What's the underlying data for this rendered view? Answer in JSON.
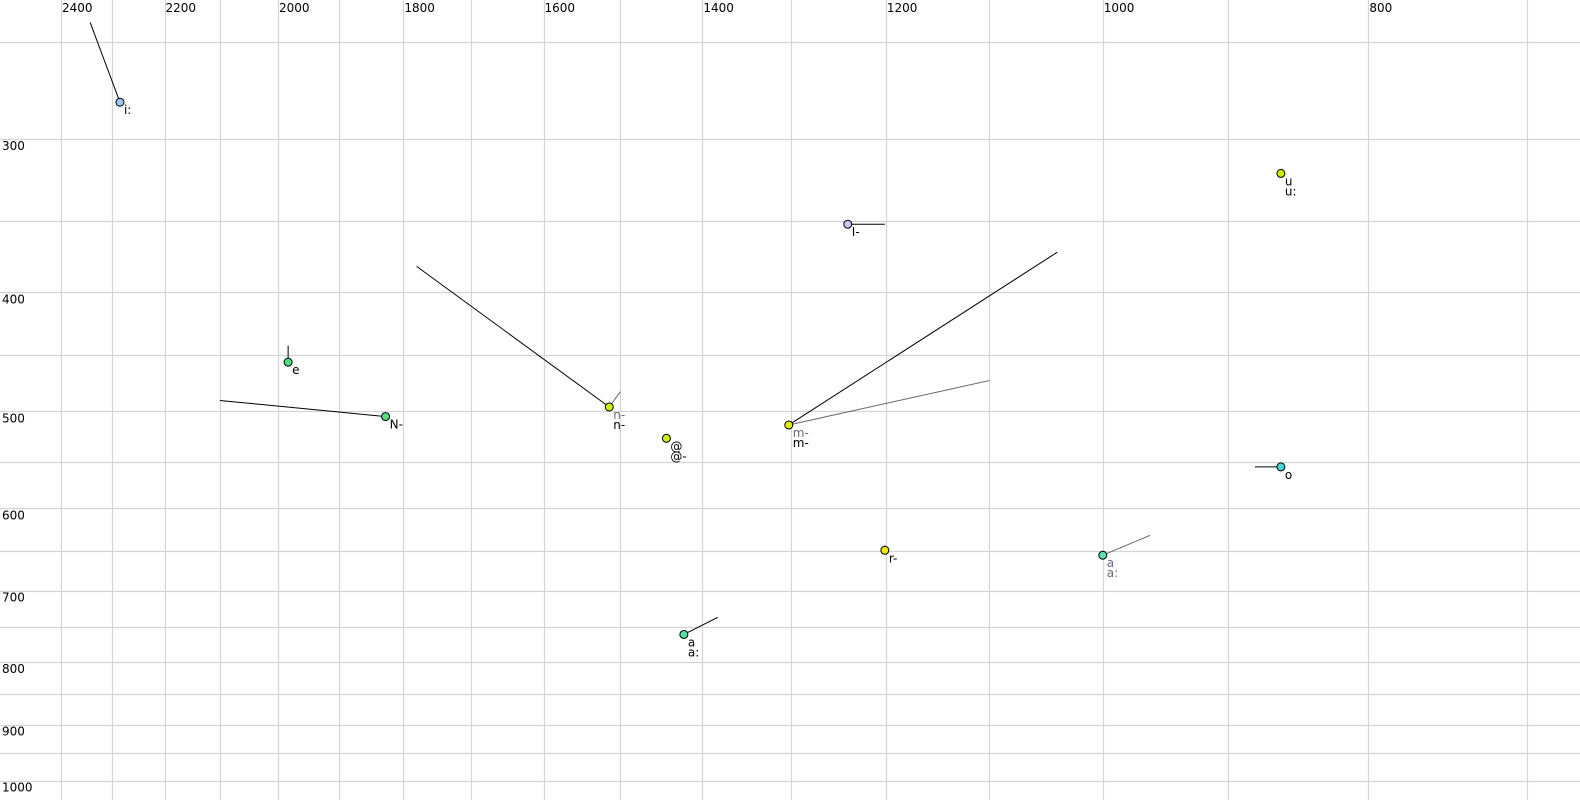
{
  "chart_data": {
    "type": "scatter",
    "title": "",
    "xlabel": "",
    "ylabel": "",
    "x_scale": "log",
    "y_scale": "log",
    "x_reversed": true,
    "xlim": [
      2531,
      681
    ],
    "ylim": [
      231,
      1020
    ],
    "grid": true,
    "x_ticks": [
      2400,
      2200,
      2000,
      1800,
      1600,
      1400,
      1200,
      1000,
      800
    ],
    "x_grid": [
      2400,
      2300,
      2200,
      2100,
      2000,
      1900,
      1800,
      1700,
      1600,
      1500,
      1400,
      1300,
      1200,
      1100,
      1000,
      900,
      800,
      700
    ],
    "y_ticks": [
      300,
      400,
      500,
      600,
      700,
      800,
      900,
      1000
    ],
    "y_grid": [
      250,
      300,
      350,
      400,
      450,
      500,
      550,
      600,
      650,
      700,
      750,
      800,
      850,
      900,
      950,
      1000
    ],
    "points": [
      {
        "f2": 2284,
        "f1": 280,
        "color": "#9cc4f0",
        "labels": [
          {
            "text": "i:",
            "grey": false
          }
        ],
        "trail": [
          [
            2342,
            241
          ]
        ],
        "trail_color": "#000000"
      },
      {
        "f2": 1983,
        "f1": 456,
        "color": "#50e080",
        "labels": [
          {
            "text": "e",
            "grey": false
          }
        ],
        "trail": [
          [
            1983,
            442
          ]
        ],
        "trail_color": "#000000"
      },
      {
        "f2": 1827,
        "f1": 505,
        "color": "#50e080",
        "labels": [
          {
            "text": "N-",
            "grey": false
          }
        ],
        "trail": [
          [
            2100,
            490
          ]
        ],
        "trail_color": "#000000"
      },
      {
        "f2": 1514,
        "f1": 496,
        "color": "#c8f000",
        "labels": [
          {
            "text": "n-",
            "grey": true
          },
          {
            "text": "n-",
            "grey": false
          }
        ],
        "trail": [
          [
            1780,
            381
          ]
        ],
        "trail_color": "#000000",
        "trail2": [
          [
            1500,
            482
          ]
        ]
      },
      {
        "f2": 1443,
        "f1": 526,
        "color": "#c8f000",
        "labels": [
          {
            "text": "@",
            "grey": false
          },
          {
            "text": "@-",
            "grey": false
          }
        ],
        "trail": []
      },
      {
        "f2": 1302,
        "f1": 513,
        "color": "#e0f000",
        "labels": [
          {
            "text": "m-",
            "grey": true
          },
          {
            "text": "m-",
            "grey": false
          }
        ],
        "trail": [
          [
            1039,
            371
          ]
        ],
        "trail_color": "#000000",
        "trail2": [
          [
            1100,
            472
          ]
        ]
      },
      {
        "f2": 1239,
        "f1": 352,
        "color": "#c8c8f0",
        "labels": [
          {
            "text": "I-",
            "grey": false
          }
        ],
        "trail": [
          [
            1201,
            352
          ]
        ],
        "trail_color": "#000000"
      },
      {
        "f2": 861,
        "f1": 320,
        "color": "#c8f000",
        "labels": [
          {
            "text": "u",
            "grey": false
          },
          {
            "text": "u:",
            "grey": false
          }
        ],
        "trail": []
      },
      {
        "f2": 861,
        "f1": 555,
        "color": "#40d8d8",
        "labels": [
          {
            "text": "o",
            "grey": false
          }
        ],
        "trail": [
          [
            880,
            555
          ]
        ],
        "trail_color": "#000000"
      },
      {
        "f2": 1201,
        "f1": 649,
        "color": "#f0e800",
        "labels": [
          {
            "text": "r-",
            "grey": false
          }
        ],
        "trail": [
          [
            1201,
            643
          ]
        ],
        "trail_color": "#000000"
      },
      {
        "f2": 1000,
        "f1": 655,
        "color": "#60e0b0",
        "labels": [
          {
            "text": "a",
            "grey": true
          },
          {
            "text": "a:",
            "grey": true
          }
        ],
        "trail": [],
        "trail2": [
          [
            961,
            631
          ]
        ]
      },
      {
        "f2": 1422,
        "f1": 760,
        "color": "#50e0a0",
        "labels": [
          {
            "text": "a",
            "grey": false
          },
          {
            "text": "a:",
            "grey": false
          }
        ],
        "trail": [
          [
            1382,
            736
          ]
        ],
        "trail_color": "#000000"
      }
    ]
  }
}
